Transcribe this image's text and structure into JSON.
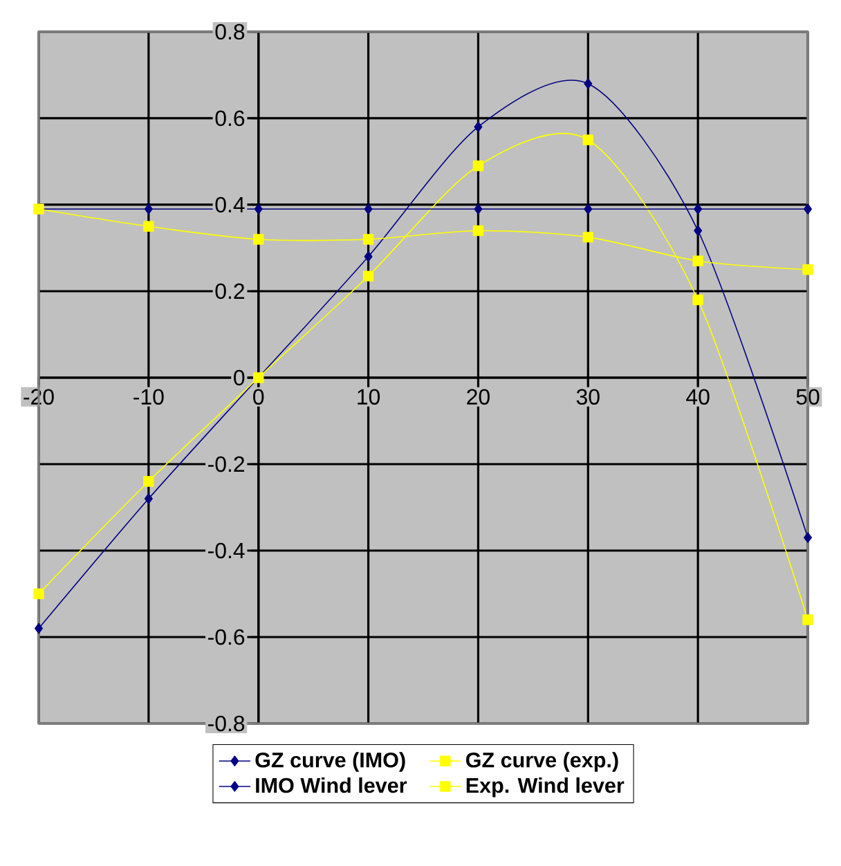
{
  "chart_data": {
    "type": "line",
    "x": [
      -20,
      -10,
      0,
      10,
      20,
      30,
      40,
      50
    ],
    "series": [
      {
        "name": "GZ curve (IMO)",
        "color": "#000080",
        "marker": "diamond",
        "values": [
          -0.58,
          -0.28,
          0,
          0.28,
          0.58,
          0.68,
          0.34,
          -0.37
        ]
      },
      {
        "name": "GZ curve (exp.)",
        "color": "#ffff00",
        "marker": "square",
        "values": [
          -0.5,
          -0.24,
          0,
          0.235,
          0.49,
          0.55,
          0.18,
          -0.56
        ]
      },
      {
        "name": "IMO Wind lever",
        "color": "#000080",
        "marker": "diamond",
        "values": [
          0.39,
          0.39,
          0.39,
          0.39,
          0.39,
          0.39,
          0.39,
          0.39
        ]
      },
      {
        "name": "Exp. Wind lever",
        "color": "#ffff00",
        "marker": "square",
        "values": [
          0.39,
          0.35,
          0.32,
          0.32,
          0.34,
          0.325,
          0.27,
          0.25
        ]
      }
    ],
    "xlim": [
      -20,
      50
    ],
    "xticks": [
      -20,
      -10,
      0,
      10,
      20,
      30,
      40,
      50
    ],
    "ylim": [
      -0.8,
      0.8
    ],
    "yticks": [
      -0.8,
      -0.6,
      -0.4,
      -0.2,
      0,
      0.2,
      0.4,
      0.6,
      0.8
    ],
    "grid": true,
    "legend": "bottom",
    "line_style": "solid"
  }
}
